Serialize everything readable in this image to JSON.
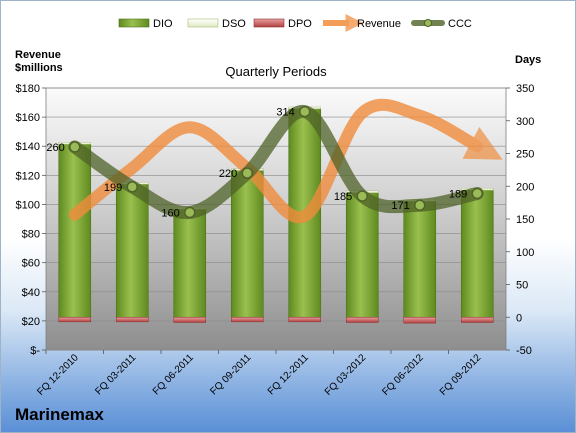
{
  "chart_data": {
    "type": "bar",
    "title": "Quarterly Periods",
    "company": "Marinemax",
    "y_left_label": [
      "Revenue",
      "$millions"
    ],
    "y_right_label": "Days",
    "y_left_ticks": [
      "$-",
      "$20",
      "$40",
      "$60",
      "$80",
      "$100",
      "$120",
      "$140",
      "$160",
      "$180"
    ],
    "y_left_lim": [
      0,
      180
    ],
    "y_right_ticks": [
      "-50",
      "0",
      "50",
      "100",
      "150",
      "200",
      "250",
      "300",
      "350"
    ],
    "y_right_lim": [
      -50,
      350
    ],
    "categories": [
      "FQ 12-2010",
      "FQ 03-2011",
      "FQ 06-2011",
      "FQ 09-2011",
      "FQ 12-2011",
      "FQ 03-2012",
      "FQ 06-2012",
      "FQ 09-2012"
    ],
    "legend": [
      "DIO",
      "DSO",
      "DPO",
      "Revenue",
      "CCC"
    ],
    "legend_position": "top",
    "series": [
      {
        "name": "DIO",
        "axis": "right",
        "type": "bar",
        "color": "#7fa33a",
        "values": [
          264,
          203,
          165,
          224,
          318,
          190,
          177,
          194
        ]
      },
      {
        "name": "DSO",
        "axis": "right",
        "type": "bar-stacked",
        "color": "#eef4d8",
        "values": [
          3,
          3,
          3,
          3,
          3,
          3,
          3,
          3
        ]
      },
      {
        "name": "DPO",
        "axis": "right",
        "type": "bar-negative",
        "color": "#c0504d",
        "values": [
          -7,
          -7,
          -8,
          -7,
          -7,
          -8,
          -9,
          -8
        ]
      },
      {
        "name": "Revenue",
        "axis": "left",
        "type": "line",
        "color": "#f08c3c",
        "values": [
          93,
          125,
          153,
          125,
          92,
          163,
          161,
          140
        ]
      },
      {
        "name": "CCC",
        "axis": "right",
        "type": "line",
        "color": "#4f6228",
        "values": [
          260,
          199,
          160,
          220,
          314,
          185,
          171,
          189
        ]
      }
    ],
    "data_labels": [
      "260",
      "199",
      "160",
      "220",
      "314",
      "185",
      "171",
      "189"
    ]
  }
}
